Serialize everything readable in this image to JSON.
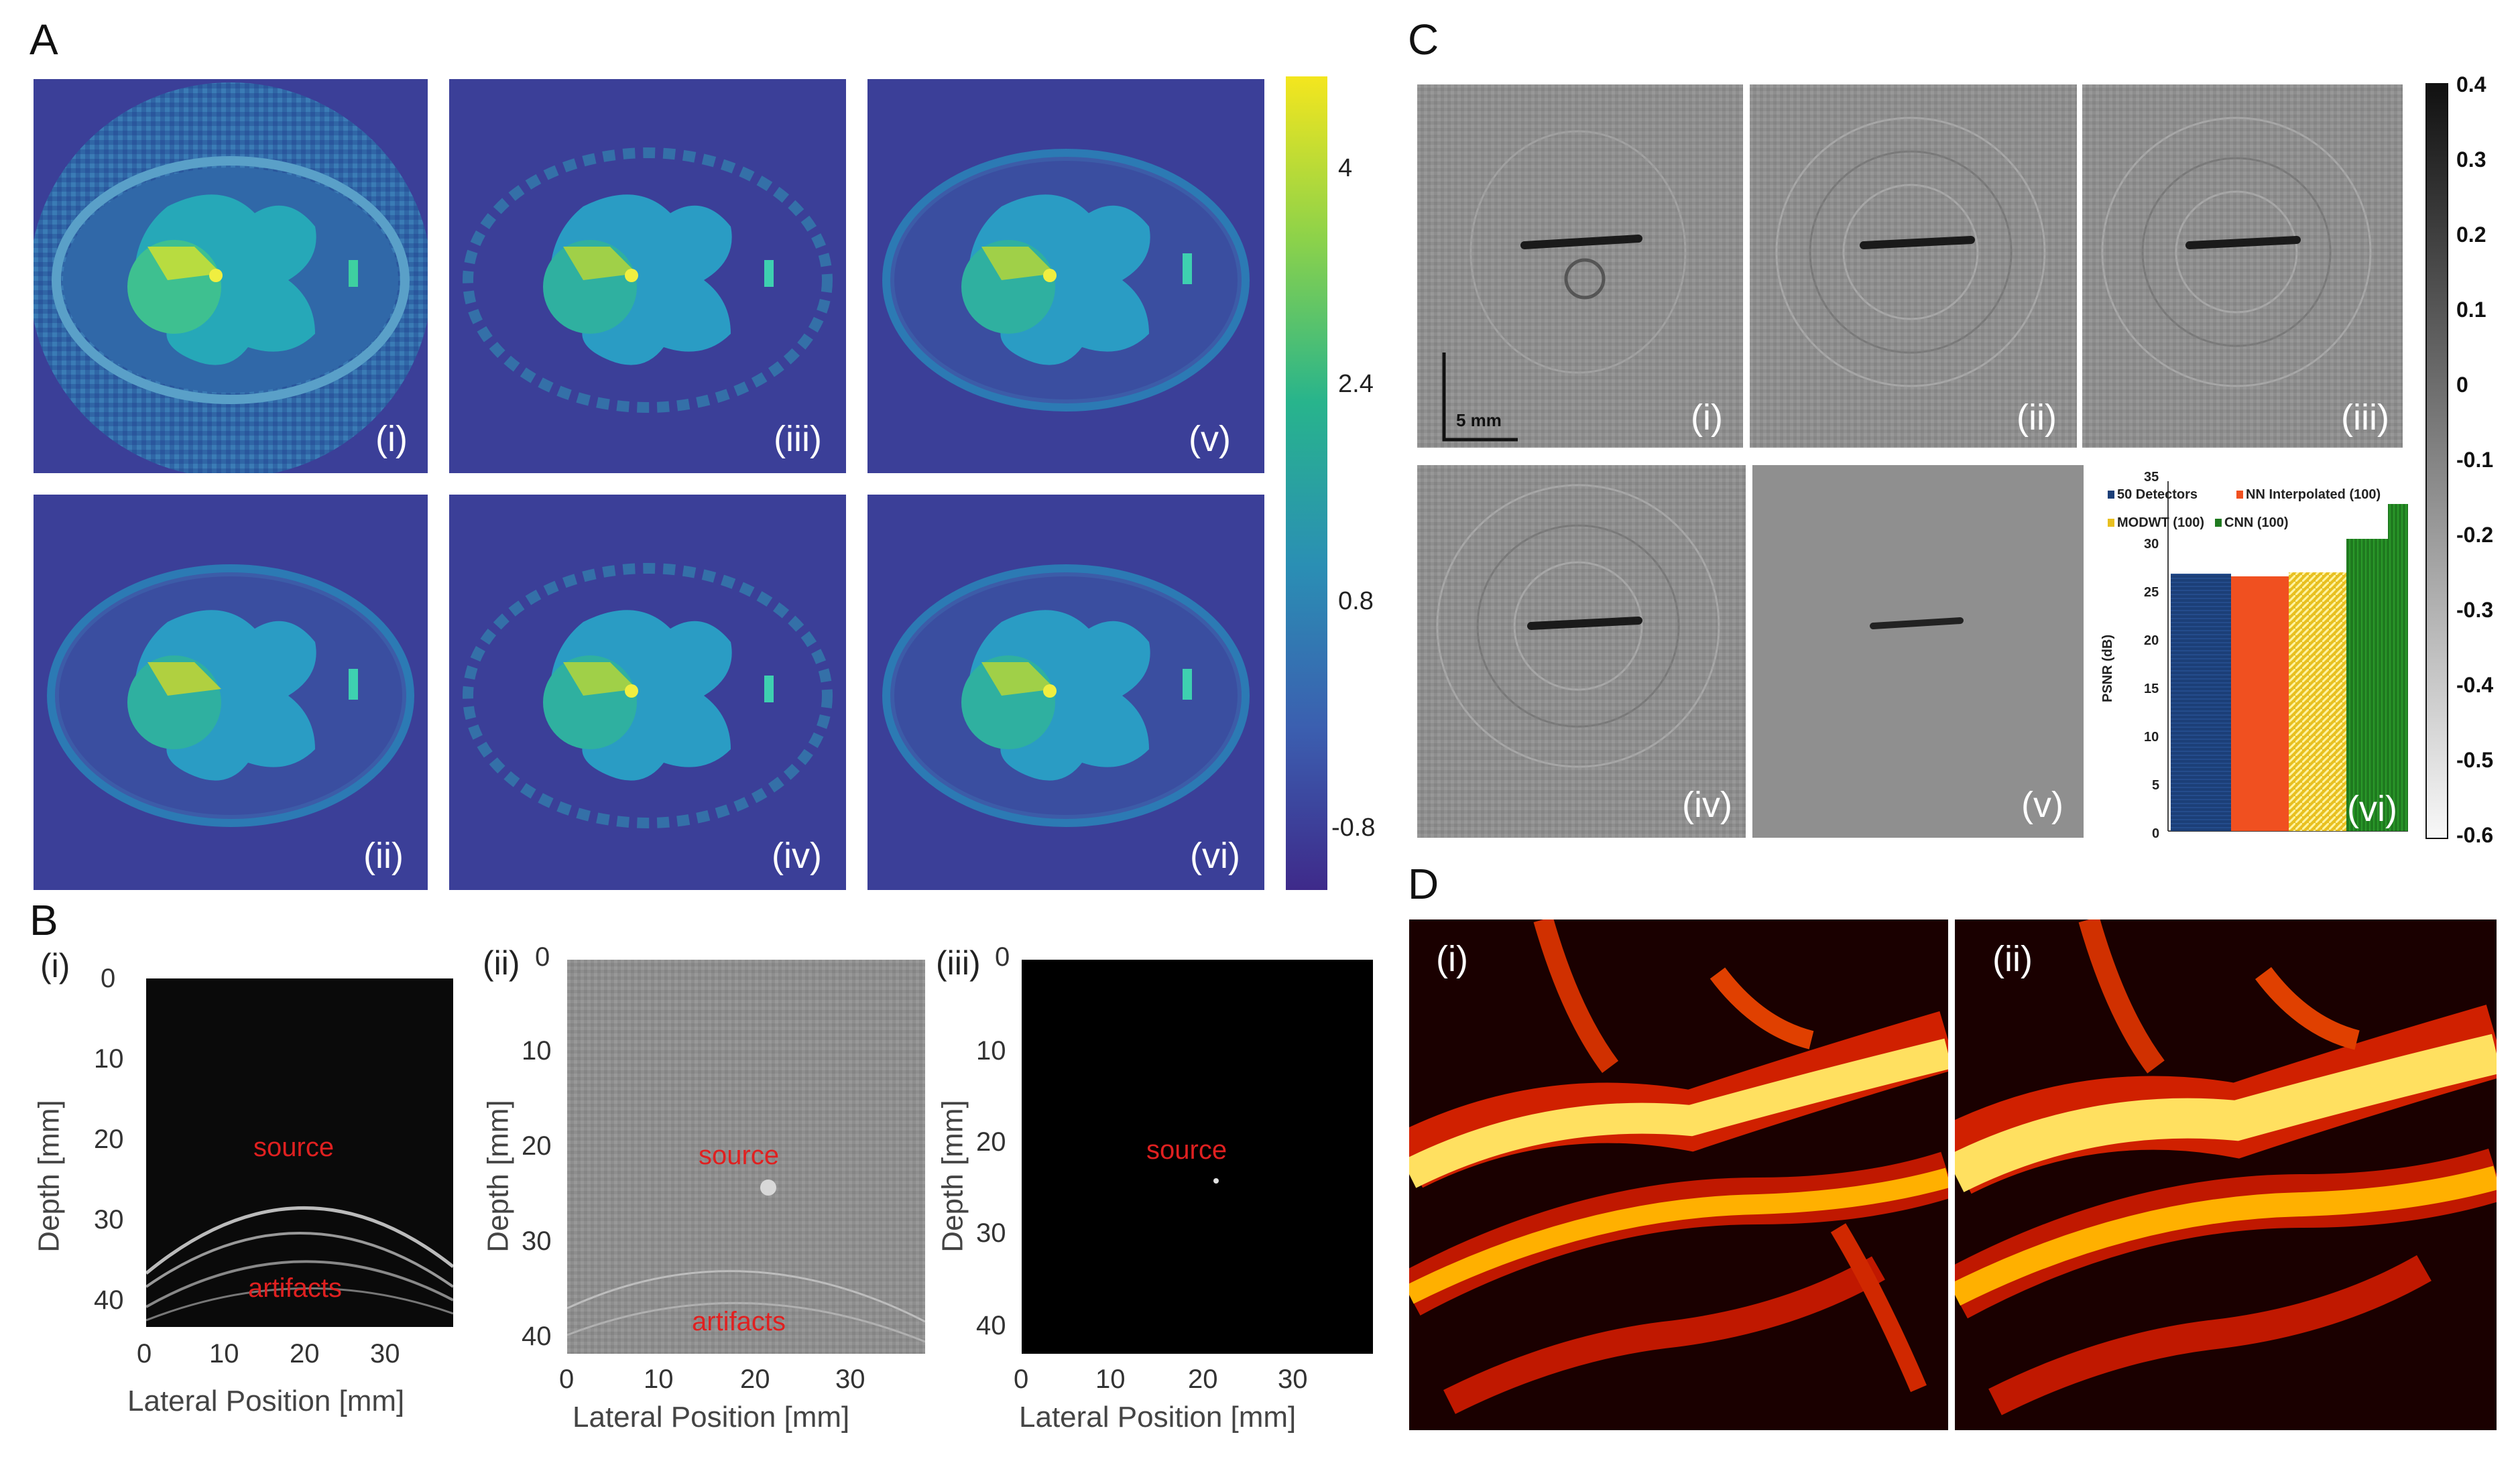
{
  "panels": {
    "A": {
      "letter": "A",
      "tile_labels": [
        "(i)",
        "(iii)",
        "(v)",
        "(ii)",
        "(iv)",
        "(vi)"
      ],
      "colorbar_ticks": [
        "4",
        "2.4",
        "0.8",
        "-0.8"
      ]
    },
    "B": {
      "letter": "B",
      "sub_labels": [
        "(i)",
        "(ii)",
        "(iii)"
      ],
      "y_title": "Depth [mm]",
      "x_title": "Lateral Position [mm]",
      "x_ticks": [
        "0",
        "10",
        "20",
        "30"
      ],
      "plot1_y_ticks": [
        "0",
        "10",
        "20",
        "30",
        "40"
      ],
      "plot2_y_ticks": [
        "0",
        "10",
        "20",
        "30",
        "40"
      ],
      "plot3_y_ticks": [
        "0",
        "10",
        "20",
        "30",
        "40"
      ],
      "note_source": "source",
      "note_artifacts": "artifacts"
    },
    "C": {
      "letter": "C",
      "tile_labels": [
        "(i)",
        "(ii)",
        "(iii)",
        "(iv)",
        "(v)",
        "(vi)"
      ],
      "scalebar_label": "5 mm",
      "colorbar_ticks": [
        "0.4",
        "0.3",
        "0.2",
        "0.1",
        "0",
        "-0.1",
        "-0.2",
        "-0.3",
        "-0.4",
        "-0.5",
        "-0.6"
      ],
      "inset_chart": {
        "ylabel": "PSNR (dB)",
        "y_ticks": [
          "0",
          "5",
          "10",
          "15",
          "20",
          "25",
          "30",
          "35"
        ],
        "legend": [
          "50 Detectors",
          "NN Interpolated (100)",
          "MODWT (100)",
          "CNN (100)"
        ]
      }
    },
    "D": {
      "letter": "D",
      "tile_labels": [
        "(i)",
        "(ii)"
      ]
    }
  },
  "colors": {
    "viridis_bg": "#3b3f98",
    "cnn_green": "#1f7a1f",
    "detectors_blue": "#1c3f78",
    "nn_orange": "#f05020",
    "modwt_yellow": "#e8c020",
    "source_red": "#e02020"
  }
}
